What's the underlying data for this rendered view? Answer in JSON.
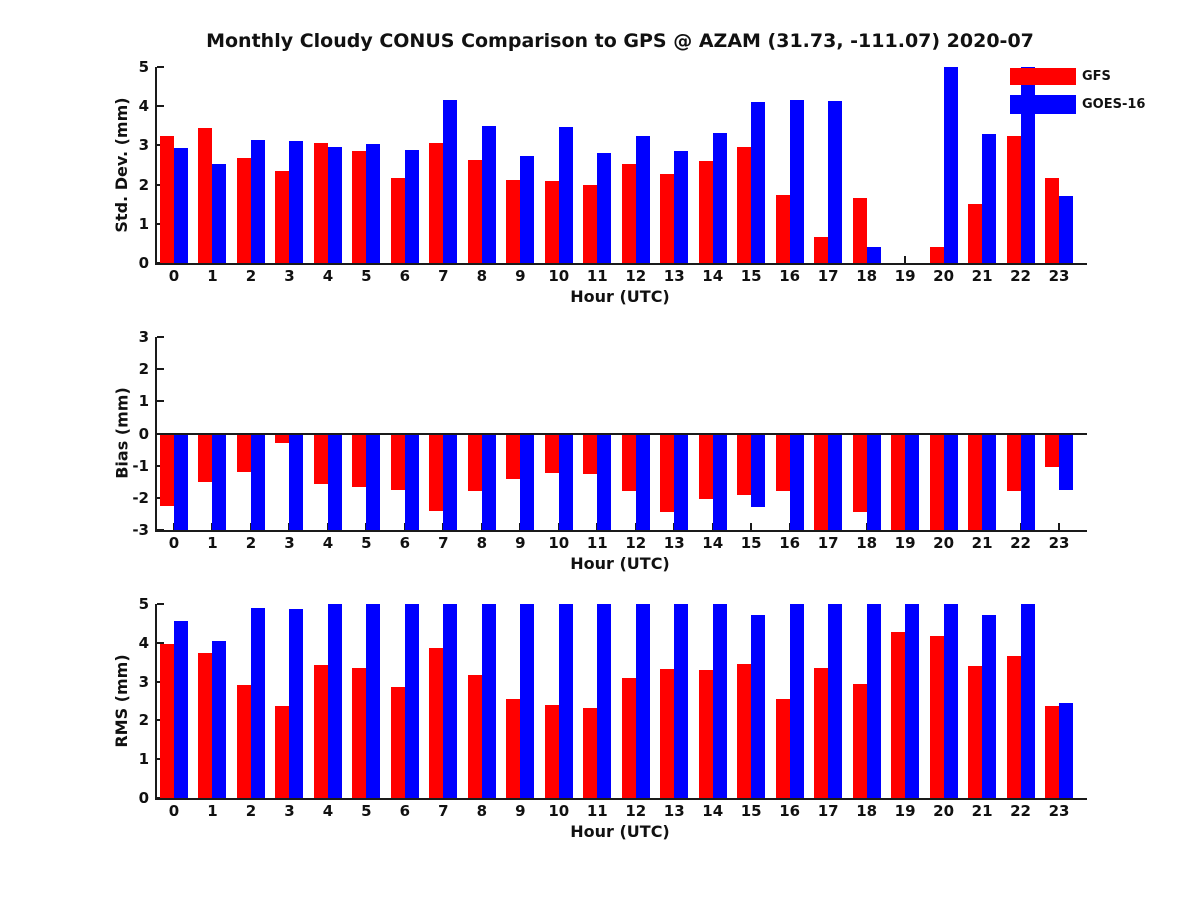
{
  "title": "Monthly Cloudy CONUS Comparison to GPS @ AZAM (31.73, -111.07) 2020-07",
  "legend": {
    "position": "top-right",
    "items": [
      {
        "label": "GFS",
        "color": "#ff0000"
      },
      {
        "label": "GOES-16",
        "color": "#0000ff"
      }
    ]
  },
  "chart_data": [
    {
      "type": "bar",
      "ylabel": "Std. Dev. (mm)",
      "xlabel": "Hour (UTC)",
      "ylim": [
        0,
        5
      ],
      "yticks": [
        0,
        1,
        2,
        3,
        4,
        5
      ],
      "grid": false,
      "categories": [
        "0",
        "1",
        "2",
        "3",
        "4",
        "5",
        "6",
        "7",
        "8",
        "9",
        "10",
        "11",
        "12",
        "13",
        "14",
        "15",
        "16",
        "17",
        "18",
        "19",
        "20",
        "21",
        "22",
        "23"
      ],
      "series": [
        {
          "name": "GFS",
          "color": "#ff0000",
          "values": [
            3.25,
            3.45,
            2.67,
            2.35,
            3.07,
            2.86,
            2.18,
            3.05,
            2.63,
            2.12,
            2.08,
            1.98,
            2.53,
            2.28,
            2.6,
            2.96,
            1.74,
            0.66,
            1.66,
            null,
            0.42,
            1.5,
            3.24,
            2.16
          ]
        },
        {
          "name": "GOES-16",
          "color": "#0000ff",
          "values": [
            2.93,
            2.52,
            3.14,
            3.11,
            2.96,
            3.04,
            2.89,
            4.15,
            3.5,
            2.72,
            3.48,
            2.81,
            3.25,
            2.86,
            3.32,
            4.11,
            4.16,
            4.14,
            0.42,
            null,
            5.0,
            3.28,
            5.0,
            1.71
          ]
        }
      ]
    },
    {
      "type": "bar",
      "ylabel": "Bias (mm)",
      "xlabel": "Hour (UTC)",
      "ylim": [
        -3,
        3
      ],
      "yticks": [
        -3,
        -2,
        -1,
        0,
        1,
        2,
        3
      ],
      "zero_line": true,
      "grid": false,
      "categories": [
        "0",
        "1",
        "2",
        "3",
        "4",
        "5",
        "6",
        "7",
        "8",
        "9",
        "10",
        "11",
        "12",
        "13",
        "14",
        "15",
        "16",
        "17",
        "18",
        "19",
        "20",
        "21",
        "22",
        "23"
      ],
      "series": [
        {
          "name": "GFS",
          "color": "#ff0000",
          "values": [
            -2.25,
            -1.5,
            -1.2,
            -0.3,
            -1.57,
            -1.65,
            -1.75,
            -2.42,
            -1.8,
            -1.4,
            -1.22,
            -1.27,
            -1.8,
            -2.45,
            -2.05,
            -1.9,
            -1.8,
            -3.0,
            -2.45,
            -3.0,
            -3.0,
            -3.0,
            -1.8,
            -1.05
          ]
        },
        {
          "name": "GOES-16",
          "color": "#0000ff",
          "values": [
            -3.0,
            -3.0,
            -3.0,
            -3.0,
            -3.0,
            -3.0,
            -3.0,
            -3.0,
            -3.0,
            -3.0,
            -3.0,
            -3.0,
            -3.0,
            -3.0,
            -3.0,
            -2.3,
            -3.0,
            -3.0,
            -3.0,
            -3.0,
            -3.0,
            -3.0,
            -3.0,
            -1.75
          ]
        }
      ]
    },
    {
      "type": "bar",
      "ylabel": "RMS (mm)",
      "xlabel": "Hour (UTC)",
      "ylim": [
        0,
        5
      ],
      "yticks": [
        0,
        1,
        2,
        3,
        4,
        5
      ],
      "grid": false,
      "categories": [
        "0",
        "1",
        "2",
        "3",
        "4",
        "5",
        "6",
        "7",
        "8",
        "9",
        "10",
        "11",
        "12",
        "13",
        "14",
        "15",
        "16",
        "17",
        "18",
        "19",
        "20",
        "21",
        "22",
        "23"
      ],
      "series": [
        {
          "name": "GFS",
          "color": "#ff0000",
          "values": [
            3.97,
            3.75,
            2.92,
            2.38,
            3.44,
            3.35,
            2.85,
            3.87,
            3.16,
            2.54,
            2.41,
            2.31,
            3.09,
            3.32,
            3.29,
            3.46,
            2.54,
            3.35,
            2.95,
            4.29,
            4.17,
            3.4,
            3.66,
            2.38
          ]
        },
        {
          "name": "GOES-16",
          "color": "#0000ff",
          "values": [
            4.55,
            4.04,
            4.91,
            4.88,
            5.0,
            5.0,
            5.0,
            5.0,
            5.0,
            5.0,
            5.0,
            5.0,
            5.0,
            5.0,
            5.0,
            4.72,
            5.0,
            5.0,
            5.0,
            5.0,
            5.0,
            4.72,
            5.0,
            2.46
          ]
        }
      ]
    }
  ]
}
